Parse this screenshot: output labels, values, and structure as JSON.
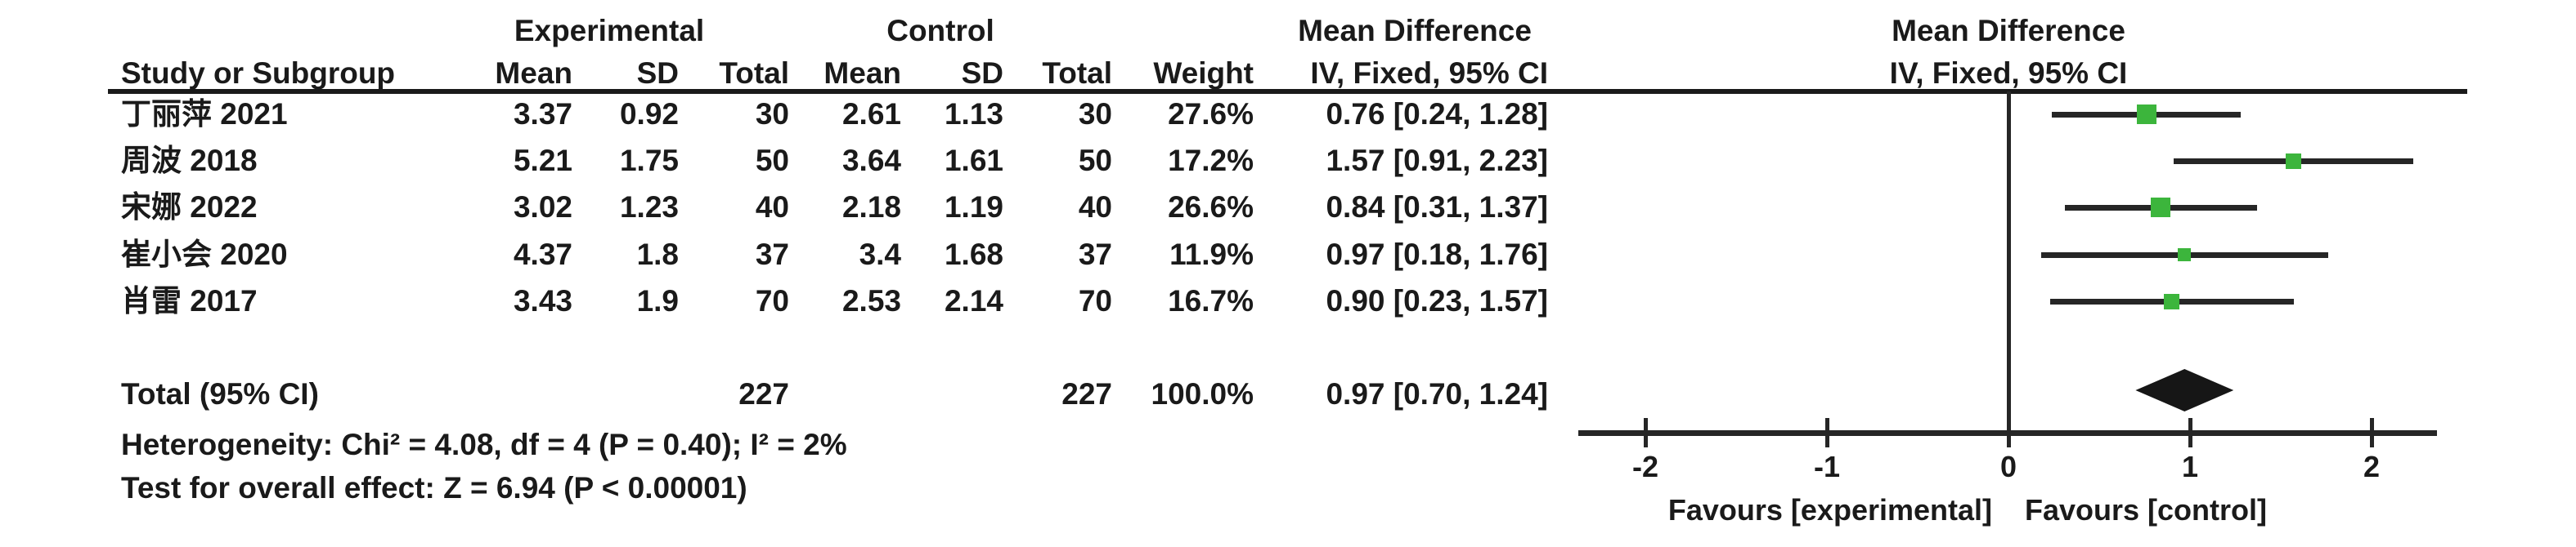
{
  "header": {
    "groups": {
      "experimental": "Experimental",
      "control": "Control",
      "effect": "Mean Difference"
    },
    "columns": {
      "study": "Study or Subgroup",
      "mean": "Mean",
      "sd": "SD",
      "total": "Total",
      "weight": "Weight",
      "ci": "IV, Fixed, 95% CI"
    }
  },
  "chart_data": {
    "type": "forest_plot",
    "effect_label": "Mean Difference",
    "method_label": "IV, Fixed, 95% CI",
    "x_ticks": [
      "-2",
      "-1",
      "0",
      "1",
      "2"
    ],
    "xlim": [
      -2,
      2
    ],
    "favours_left": "Favours [experimental]",
    "favours_right": "Favours [control]",
    "studies": [
      {
        "name": "丁丽萍 2021",
        "exp_mean": "3.37",
        "exp_sd": "0.92",
        "exp_total": "30",
        "ctrl_mean": "2.61",
        "ctrl_sd": "1.13",
        "ctrl_total": "30",
        "weight": "27.6%",
        "ci_text": "0.76 [0.24, 1.28]",
        "md": 0.76,
        "lo": 0.24,
        "hi": 1.28
      },
      {
        "name": "周波 2018",
        "exp_mean": "5.21",
        "exp_sd": "1.75",
        "exp_total": "50",
        "ctrl_mean": "3.64",
        "ctrl_sd": "1.61",
        "ctrl_total": "50",
        "weight": "17.2%",
        "ci_text": "1.57 [0.91, 2.23]",
        "md": 1.57,
        "lo": 0.91,
        "hi": 2.23
      },
      {
        "name": "宋娜 2022",
        "exp_mean": "3.02",
        "exp_sd": "1.23",
        "exp_total": "40",
        "ctrl_mean": "2.18",
        "ctrl_sd": "1.19",
        "ctrl_total": "40",
        "weight": "26.6%",
        "ci_text": "0.84 [0.31, 1.37]",
        "md": 0.84,
        "lo": 0.31,
        "hi": 1.37
      },
      {
        "name": "崔小会 2020",
        "exp_mean": "4.37",
        "exp_sd": "1.8",
        "exp_total": "37",
        "ctrl_mean": "3.4",
        "ctrl_sd": "1.68",
        "ctrl_total": "37",
        "weight": "11.9%",
        "ci_text": "0.97 [0.18, 1.76]",
        "md": 0.97,
        "lo": 0.18,
        "hi": 1.76
      },
      {
        "name": "肖雷 2017",
        "exp_mean": "3.43",
        "exp_sd": "1.9",
        "exp_total": "70",
        "ctrl_mean": "2.53",
        "ctrl_sd": "2.14",
        "ctrl_total": "70",
        "weight": "16.7%",
        "ci_text": "0.90 [0.23, 1.57]",
        "md": 0.9,
        "lo": 0.23,
        "hi": 1.57
      }
    ],
    "total": {
      "name": "Total (95% CI)",
      "exp_total": "227",
      "ctrl_total": "227",
      "weight": "100.0%",
      "ci_text": "0.97 [0.70, 1.24]",
      "md": 0.97,
      "lo": 0.7,
      "hi": 1.24
    },
    "footnotes": {
      "heterogeneity": "Heterogeneity: Chi² = 4.08, df = 4 (P = 0.40); I² = 2%",
      "overall_effect": "Test for overall effect: Z = 6.94 (P < 0.00001)"
    },
    "colors": {
      "square": "#3cb53c",
      "ci_line": "#262626",
      "diamond": "#161616",
      "text": "#1a1a1a"
    }
  }
}
